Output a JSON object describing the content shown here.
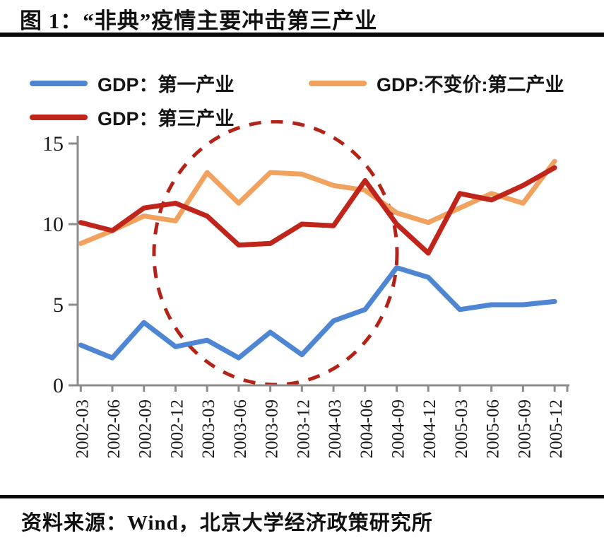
{
  "title": "图 1：“非典”疫情主要冲击第三产业",
  "source_note": "资料来源：Wind，北京大学经济政策研究所",
  "chart_data": {
    "type": "line",
    "x": [
      "2002-03",
      "2002-06",
      "2002-09",
      "2002-12",
      "2003-03",
      "2003-06",
      "2003-09",
      "2003-12",
      "2004-03",
      "2004-06",
      "2004-09",
      "2004-12",
      "2005-03",
      "2005-06",
      "2005-09",
      "2005-12"
    ],
    "series": [
      {
        "name": "GDP：第一产业",
        "color": "#4e86d4",
        "values": [
          2.5,
          1.7,
          3.9,
          2.4,
          2.8,
          1.7,
          3.3,
          1.9,
          4.0,
          4.7,
          7.3,
          6.7,
          4.7,
          5.0,
          5.0,
          5.2
        ]
      },
      {
        "name": "GDP:不变价:第二产业",
        "color": "#f0a25e",
        "values": [
          8.8,
          9.6,
          10.5,
          10.2,
          13.2,
          11.3,
          13.2,
          13.1,
          12.4,
          12.1,
          10.7,
          10.1,
          11.0,
          11.9,
          11.3,
          13.9
        ]
      },
      {
        "name": "GDP：第三产业",
        "color": "#c0251b",
        "values": [
          10.1,
          9.6,
          11.0,
          11.3,
          10.5,
          8.7,
          8.8,
          10.0,
          9.9,
          12.7,
          10.0,
          8.2,
          11.9,
          11.5,
          12.4,
          13.5
        ]
      }
    ],
    "ylim": [
      0,
      15
    ],
    "yticks": [
      0,
      5,
      10,
      15
    ],
    "xlabel": "",
    "ylabel": "",
    "grid": false,
    "legend_position": "top-left",
    "axis_color": "#8c8c8c",
    "annotations": [
      {
        "shape": "dashed-ellipse",
        "color": "#b32318",
        "purpose": "highlights the SARS epidemic period (2003) impact on services",
        "x_range": [
          "2002-12",
          "2004-09"
        ],
        "y_range": [
          0,
          15
        ]
      }
    ]
  }
}
